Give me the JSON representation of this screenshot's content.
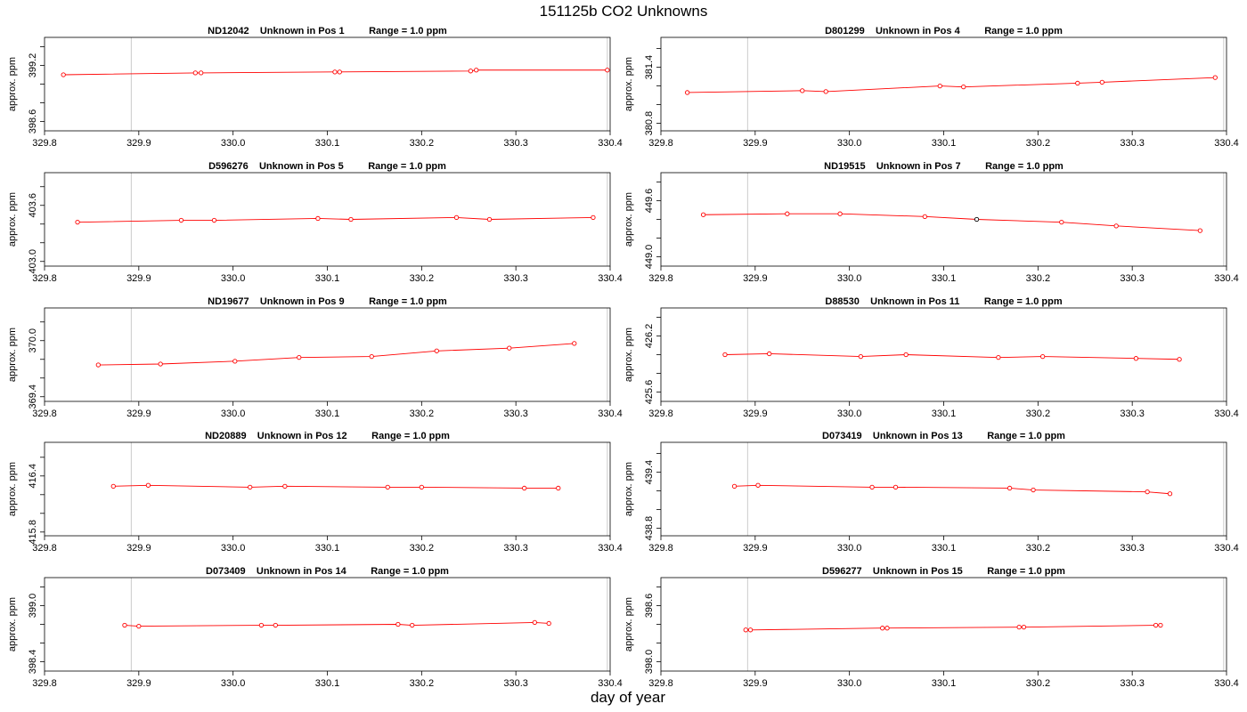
{
  "title": "151125b  CO2 Unknowns",
  "xlabel": "day of year",
  "chart_data": [
    {
      "type": "line",
      "title": "ND12042    Unknown in Pos 1         Range = 1.0 ppm",
      "ylabel": "approx. ppm",
      "xlim": [
        329.8,
        330.4
      ],
      "ylim": [
        398.5,
        399.5
      ],
      "xticks": [
        329.8,
        329.9,
        330.0,
        330.1,
        330.2,
        330.3,
        330.4
      ],
      "yticks": [
        398.6,
        398.8,
        399.0,
        399.2,
        399.4
      ],
      "ytick_labels": [
        398.6,
        399.2
      ],
      "vlines": [
        329.892,
        330.397
      ],
      "series": [
        {
          "x": [
            329.82,
            329.96,
            329.966,
            330.108,
            330.113,
            330.252,
            330.258,
            330.397
          ],
          "y": [
            399.1,
            399.12,
            399.12,
            399.13,
            399.13,
            399.14,
            399.15,
            399.15
          ],
          "markers": [
            "red",
            "red",
            "red",
            "red",
            "red",
            "red",
            "red",
            "red"
          ]
        }
      ]
    },
    {
      "type": "line",
      "title": "D801299    Unknown in Pos 4         Range = 1.0 ppm",
      "ylabel": "approx. ppm",
      "xlim": [
        329.8,
        330.4
      ],
      "ylim": [
        380.72,
        381.72
      ],
      "xticks": [
        329.8,
        329.9,
        330.0,
        330.1,
        330.2,
        330.3,
        330.4
      ],
      "yticks": [
        380.8,
        381.0,
        381.2,
        381.4,
        381.6
      ],
      "ytick_labels": [
        380.8,
        381.4
      ],
      "vlines": [
        329.892,
        330.397
      ],
      "series": [
        {
          "x": [
            329.828,
            329.95,
            329.975,
            330.096,
            330.121,
            330.242,
            330.268,
            330.388
          ],
          "y": [
            381.13,
            381.15,
            381.14,
            381.2,
            381.19,
            381.23,
            381.24,
            381.29
          ],
          "markers": [
            "red",
            "red",
            "red",
            "red",
            "red",
            "red",
            "red",
            "red"
          ]
        }
      ]
    },
    {
      "type": "line",
      "title": "D596276    Unknown in Pos 5         Range = 1.0 ppm",
      "ylabel": "approx. ppm",
      "xlim": [
        329.8,
        330.4
      ],
      "ylim": [
        402.95,
        403.95
      ],
      "xticks": [
        329.8,
        329.9,
        330.0,
        330.1,
        330.2,
        330.3,
        330.4
      ],
      "yticks": [
        403.0,
        403.2,
        403.4,
        403.6,
        403.8
      ],
      "ytick_labels": [
        403.0,
        403.6
      ],
      "vlines": [
        329.892,
        330.397
      ],
      "series": [
        {
          "x": [
            329.835,
            329.945,
            329.98,
            330.09,
            330.125,
            330.237,
            330.272,
            330.382
          ],
          "y": [
            403.42,
            403.44,
            403.44,
            403.46,
            403.45,
            403.47,
            403.45,
            403.47
          ],
          "markers": [
            "red",
            "red",
            "red",
            "red",
            "red",
            "red",
            "red",
            "red"
          ]
        }
      ]
    },
    {
      "type": "line",
      "title": "ND19515    Unknown in Pos 7         Range = 1.0 ppm",
      "ylabel": "approx. ppm",
      "xlim": [
        329.8,
        330.4
      ],
      "ylim": [
        448.9,
        449.9
      ],
      "xticks": [
        329.8,
        329.9,
        330.0,
        330.1,
        330.2,
        330.3,
        330.4
      ],
      "yticks": [
        449.0,
        449.2,
        449.4,
        449.6,
        449.8
      ],
      "ytick_labels": [
        449.0,
        449.6
      ],
      "vlines": [
        329.892,
        330.397
      ],
      "series": [
        {
          "x": [
            329.845,
            329.934,
            329.99,
            330.08,
            330.135,
            330.225,
            330.283,
            330.372
          ],
          "y": [
            449.45,
            449.46,
            449.46,
            449.43,
            449.4,
            449.37,
            449.33,
            449.28
          ],
          "markers": [
            "red",
            "red",
            "red",
            "red",
            "black",
            "red",
            "red",
            "red"
          ]
        }
      ]
    },
    {
      "type": "line",
      "title": "ND19677    Unknown in Pos 9         Range = 1.0 ppm",
      "ylabel": "approx. ppm",
      "xlim": [
        329.8,
        330.4
      ],
      "ylim": [
        369.35,
        370.35
      ],
      "xticks": [
        329.8,
        329.9,
        330.0,
        330.1,
        330.2,
        330.3,
        330.4
      ],
      "yticks": [
        369.4,
        369.6,
        369.8,
        370.0,
        370.2
      ],
      "ytick_labels": [
        369.4,
        370.0
      ],
      "vlines": [
        329.892,
        330.397
      ],
      "series": [
        {
          "x": [
            329.857,
            329.923,
            330.002,
            330.07,
            330.147,
            330.216,
            330.293,
            330.362
          ],
          "y": [
            369.74,
            369.75,
            369.78,
            369.82,
            369.83,
            369.89,
            369.92,
            369.97
          ],
          "markers": [
            "red",
            "red",
            "red",
            "red",
            "red",
            "red",
            "red",
            "red"
          ]
        }
      ]
    },
    {
      "type": "line",
      "title": "D88530    Unknown in Pos 11         Range = 1.0 ppm",
      "ylabel": "approx. ppm",
      "xlim": [
        329.8,
        330.4
      ],
      "ylim": [
        425.5,
        426.5
      ],
      "xticks": [
        329.8,
        329.9,
        330.0,
        330.1,
        330.2,
        330.3,
        330.4
      ],
      "yticks": [
        425.6,
        425.8,
        426.0,
        426.2,
        426.4
      ],
      "ytick_labels": [
        425.6,
        426.2
      ],
      "vlines": [
        329.892,
        330.397
      ],
      "series": [
        {
          "x": [
            329.868,
            329.915,
            330.012,
            330.06,
            330.158,
            330.205,
            330.304,
            330.35
          ],
          "y": [
            426.0,
            426.01,
            425.98,
            426.0,
            425.97,
            425.98,
            425.96,
            425.95
          ],
          "markers": [
            "red",
            "red",
            "red",
            "red",
            "red",
            "red",
            "red",
            "red"
          ]
        }
      ]
    },
    {
      "type": "line",
      "title": "ND20889    Unknown in Pos 12         Range = 1.0 ppm",
      "ylabel": "approx. ppm",
      "xlim": [
        329.8,
        330.4
      ],
      "ylim": [
        415.76,
        416.76
      ],
      "xticks": [
        329.8,
        329.9,
        330.0,
        330.1,
        330.2,
        330.3,
        330.4
      ],
      "yticks": [
        415.8,
        416.0,
        416.2,
        416.4,
        416.6
      ],
      "ytick_labels": [
        415.8,
        416.4
      ],
      "vlines": [
        329.892,
        330.397
      ],
      "series": [
        {
          "x": [
            329.873,
            329.91,
            330.018,
            330.055,
            330.164,
            330.2,
            330.309,
            330.345
          ],
          "y": [
            416.29,
            416.3,
            416.28,
            416.29,
            416.28,
            416.28,
            416.27,
            416.27
          ],
          "markers": [
            "red",
            "red",
            "red",
            "red",
            "red",
            "red",
            "red",
            "red"
          ]
        }
      ]
    },
    {
      "type": "line",
      "title": "D073419    Unknown in Pos 13         Range = 1.0 ppm",
      "ylabel": "approx. ppm",
      "xlim": [
        329.8,
        330.4
      ],
      "ylim": [
        438.72,
        439.72
      ],
      "xticks": [
        329.8,
        329.9,
        330.0,
        330.1,
        330.2,
        330.3,
        330.4
      ],
      "yticks": [
        438.8,
        439.0,
        439.2,
        439.4,
        439.6
      ],
      "ytick_labels": [
        438.8,
        439.4
      ],
      "vlines": [
        329.892,
        330.397
      ],
      "series": [
        {
          "x": [
            329.878,
            329.903,
            330.024,
            330.049,
            330.17,
            330.195,
            330.316,
            330.34
          ],
          "y": [
            439.25,
            439.26,
            439.24,
            439.24,
            439.23,
            439.21,
            439.19,
            439.17
          ],
          "markers": [
            "red",
            "red",
            "red",
            "red",
            "red",
            "red",
            "red",
            "red"
          ]
        }
      ]
    },
    {
      "type": "line",
      "title": "D073409    Unknown in Pos 14         Range = 1.0 ppm",
      "ylabel": "approx. ppm",
      "xlim": [
        329.8,
        330.4
      ],
      "ylim": [
        398.3,
        399.3
      ],
      "xticks": [
        329.8,
        329.9,
        330.0,
        330.1,
        330.2,
        330.3,
        330.4
      ],
      "yticks": [
        398.4,
        398.6,
        398.8,
        399.0,
        399.2
      ],
      "ytick_labels": [
        398.4,
        399.0
      ],
      "vlines": [
        329.892,
        330.397
      ],
      "series": [
        {
          "x": [
            329.885,
            329.9,
            330.03,
            330.045,
            330.175,
            330.19,
            330.32,
            330.335
          ],
          "y": [
            398.79,
            398.78,
            398.79,
            398.79,
            398.8,
            398.79,
            398.82,
            398.81
          ],
          "markers": [
            "red",
            "red",
            "red",
            "red",
            "red",
            "red",
            "red",
            "red"
          ]
        }
      ]
    },
    {
      "type": "line",
      "title": "D596277    Unknown in Pos 15         Range = 1.0 ppm",
      "ylabel": "approx. ppm",
      "xlim": [
        329.8,
        330.4
      ],
      "ylim": [
        397.9,
        398.9
      ],
      "xticks": [
        329.8,
        329.9,
        330.0,
        330.1,
        330.2,
        330.3,
        330.4
      ],
      "yticks": [
        398.0,
        398.2,
        398.4,
        398.6,
        398.8
      ],
      "ytick_labels": [
        398.0,
        398.6
      ],
      "vlines": [
        329.892,
        330.397
      ],
      "series": [
        {
          "x": [
            329.89,
            329.895,
            330.035,
            330.04,
            330.18,
            330.185,
            330.325,
            330.33
          ],
          "y": [
            398.34,
            398.34,
            398.36,
            398.36,
            398.37,
            398.37,
            398.39,
            398.39
          ],
          "markers": [
            "red",
            "red",
            "red",
            "red",
            "red",
            "red",
            "red",
            "red"
          ]
        }
      ]
    }
  ]
}
